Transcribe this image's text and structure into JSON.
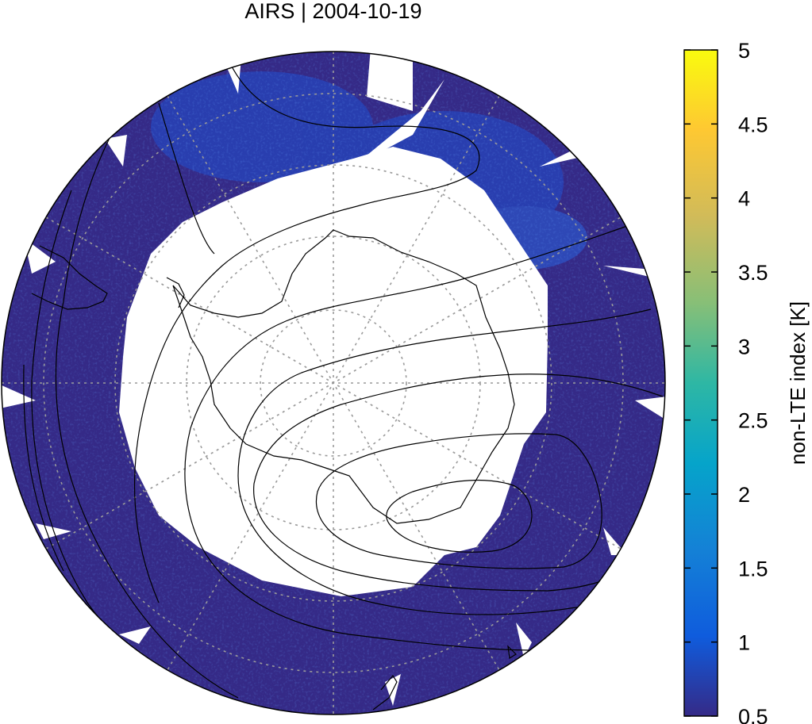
{
  "title": "AIRS | 2004-10-19",
  "colorbar": {
    "label": "non-LTE index [K]",
    "ticks": [
      "5",
      "4.5",
      "4",
      "3.5",
      "3",
      "2.5",
      "2",
      "1.5",
      "1",
      "0.5"
    ],
    "range": [
      0.5,
      5
    ],
    "colors": [
      "#352a87",
      "#0f5cdd",
      "#1481d6",
      "#06a4ca",
      "#2eb7a4",
      "#87bf77",
      "#d1bb59",
      "#fec832",
      "#f9fb0e"
    ]
  },
  "map": {
    "projection": "south polar stereographic",
    "background_color": "#352a87",
    "gap_color": "#ffffff",
    "gridline_color": "#9a9a9a",
    "coast_color": "#000000",
    "contour_color": "#000000"
  }
}
